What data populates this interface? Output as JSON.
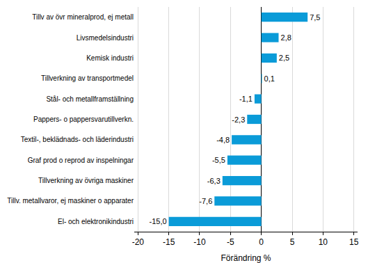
{
  "chart_data": {
    "type": "bar",
    "orientation": "horizontal",
    "categories": [
      "Tillv av övr mineralprod, ej metall",
      "Livsmedelsindustri",
      "Kemisk industri",
      "Tillverkning av transportmedel",
      "Stål- och metallframställning",
      "Pappers- o pappersvarutillverkn.",
      "Textil-, beklädnads- och läderindustri",
      "Graf prod o reprod av inspelningar",
      "Tillverkning av övriga maskiner",
      "Tillv. metallvaror, ej maskiner o apparater",
      "El- och elektronikindustri"
    ],
    "values": [
      7.5,
      2.8,
      2.5,
      0.1,
      -1.1,
      -2.3,
      -4.8,
      -5.5,
      -6.3,
      -7.6,
      -15.0
    ],
    "value_labels": [
      "7,5",
      "2,8",
      "2,5",
      "0,1",
      "-1,1",
      "-2,3",
      "-4,8",
      "-5,5",
      "-6,3",
      "-7,6",
      "-15,0"
    ],
    "data_labels": true,
    "color": "#0a9bd8",
    "x_label": "Förändring %",
    "xlim": [
      -20.6,
      15.6
    ],
    "xticks": [
      -20,
      -15,
      -10,
      -5,
      0,
      5,
      10,
      15
    ],
    "grid": true
  }
}
